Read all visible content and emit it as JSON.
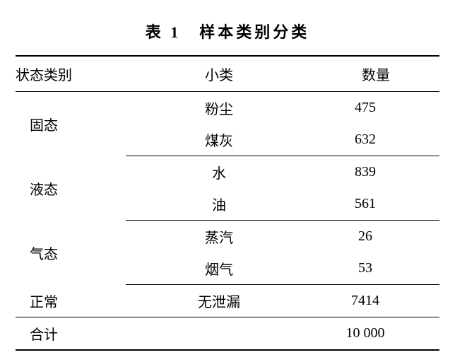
{
  "table": {
    "caption": "表 1　样本类别分类",
    "columns": [
      "状态类别",
      "小类",
      "数量"
    ],
    "groups": [
      {
        "category": "固态",
        "rows": [
          {
            "sub": "粉尘",
            "count": "475"
          },
          {
            "sub": "煤灰",
            "count": "632"
          }
        ]
      },
      {
        "category": "液态",
        "rows": [
          {
            "sub": "水",
            "count": "839"
          },
          {
            "sub": "油",
            "count": "561"
          }
        ]
      },
      {
        "category": "气态",
        "rows": [
          {
            "sub": "蒸汽",
            "count": "26"
          },
          {
            "sub": "烟气",
            "count": "53"
          }
        ]
      },
      {
        "category": "正常",
        "rows": [
          {
            "sub": "无泄漏",
            "count": "7414"
          }
        ]
      }
    ],
    "total": {
      "label": "合计",
      "sub": "",
      "count": "10 000"
    },
    "style": {
      "caption_fontsize": 22,
      "body_fontsize": 20,
      "border_color": "#000000",
      "background_color": "#ffffff",
      "text_color": "#000000",
      "outer_border_width": 2,
      "inner_border_width": 1,
      "col_widths_pct": [
        26,
        44,
        30
      ]
    }
  }
}
